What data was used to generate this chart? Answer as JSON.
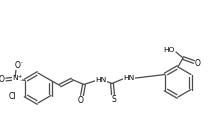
{
  "bg_color": "#ffffff",
  "line_color": "#4a4a4a",
  "line_width": 0.9,
  "font_size": 5.2,
  "fig_width": 2.2,
  "fig_height": 1.28,
  "dpi": 100,
  "xlim": [
    0,
    220
  ],
  "ylim": [
    0,
    128
  ]
}
